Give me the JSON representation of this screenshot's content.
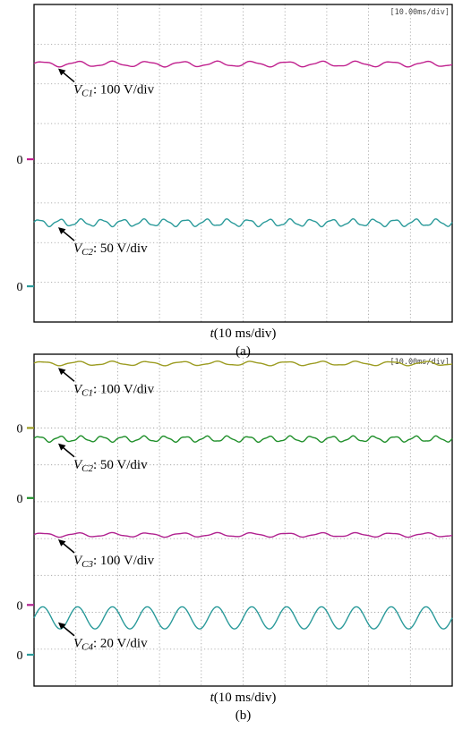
{
  "chart_data": [
    {
      "type": "line",
      "panel_caption": "(a)",
      "time_scale_readout": "[10.00ms/div]",
      "xlabel_var": "t",
      "xlabel_unit": "(10 ms/div)",
      "x_divisions": 10,
      "y_divisions": 8,
      "series": [
        {
          "id": "VC1",
          "label_sym": "V",
          "label_sub": "C1",
          "label_scale": ": 100 V/div",
          "color": "#c0208e",
          "level_div": 1.5,
          "ripple_div": 0.06,
          "cycles": 12,
          "zero_marker_div": 3.9
        },
        {
          "id": "VC2",
          "label_sym": "V",
          "label_sub": "C2",
          "label_scale": ": 50 V/div",
          "color": "#2a9a9a",
          "level_div": 5.5,
          "ripple_div": 0.08,
          "cycles": 20,
          "zero_marker_div": 7.1
        }
      ],
      "zero_marker_label": "0"
    },
    {
      "type": "line",
      "panel_caption": "(b)",
      "time_scale_readout": "[10.00ms/div]",
      "xlabel_var": "t",
      "xlabel_unit": "(10 ms/div)",
      "x_divisions": 10,
      "y_divisions": 9,
      "series": [
        {
          "id": "VC1",
          "label_sym": "V",
          "label_sub": "C1",
          "label_scale": ": 100 V/div",
          "color": "#9c9c22",
          "level_div": 0.25,
          "ripple_div": 0.05,
          "cycles": 12,
          "zero_marker_div": 2.0
        },
        {
          "id": "VC2",
          "label_sym": "V",
          "label_sub": "C2",
          "label_scale": ": 50 V/div",
          "color": "#1f8f2a",
          "level_div": 2.3,
          "ripple_div": 0.07,
          "cycles": 20,
          "zero_marker_div": 3.9
        },
        {
          "id": "VC3",
          "label_sym": "V",
          "label_sub": "C3",
          "label_scale": ": 100 V/div",
          "color": "#b0218f",
          "level_div": 4.9,
          "ripple_div": 0.05,
          "cycles": 12,
          "zero_marker_div": 6.8
        },
        {
          "id": "VC4",
          "label_sym": "V",
          "label_sub": "C4",
          "label_scale": ": 20 V/div",
          "color": "#2a9a9a",
          "level_div": 7.15,
          "ripple_div": 0.3,
          "cycles": 12,
          "zero_marker_div": 8.15
        }
      ],
      "zero_marker_label": "0"
    }
  ]
}
